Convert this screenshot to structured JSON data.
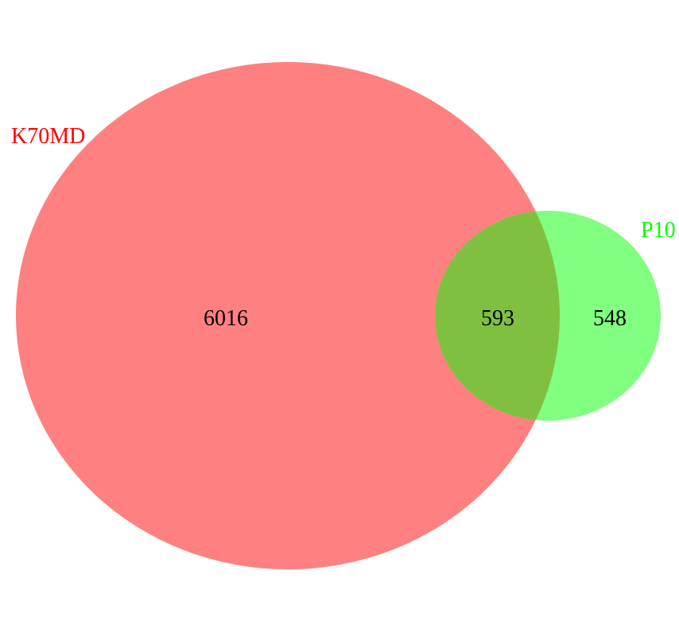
{
  "sets": [
    {
      "name": "K70MD",
      "color": "#ff0000",
      "fill": "#ff8080"
    },
    {
      "name": "P10",
      "color": "#00ff00",
      "fill": "#80ff80"
    }
  ],
  "overlap_fill": "#80c040",
  "counts": {
    "only_first": "6016",
    "both": "593",
    "only_second": "548"
  }
}
